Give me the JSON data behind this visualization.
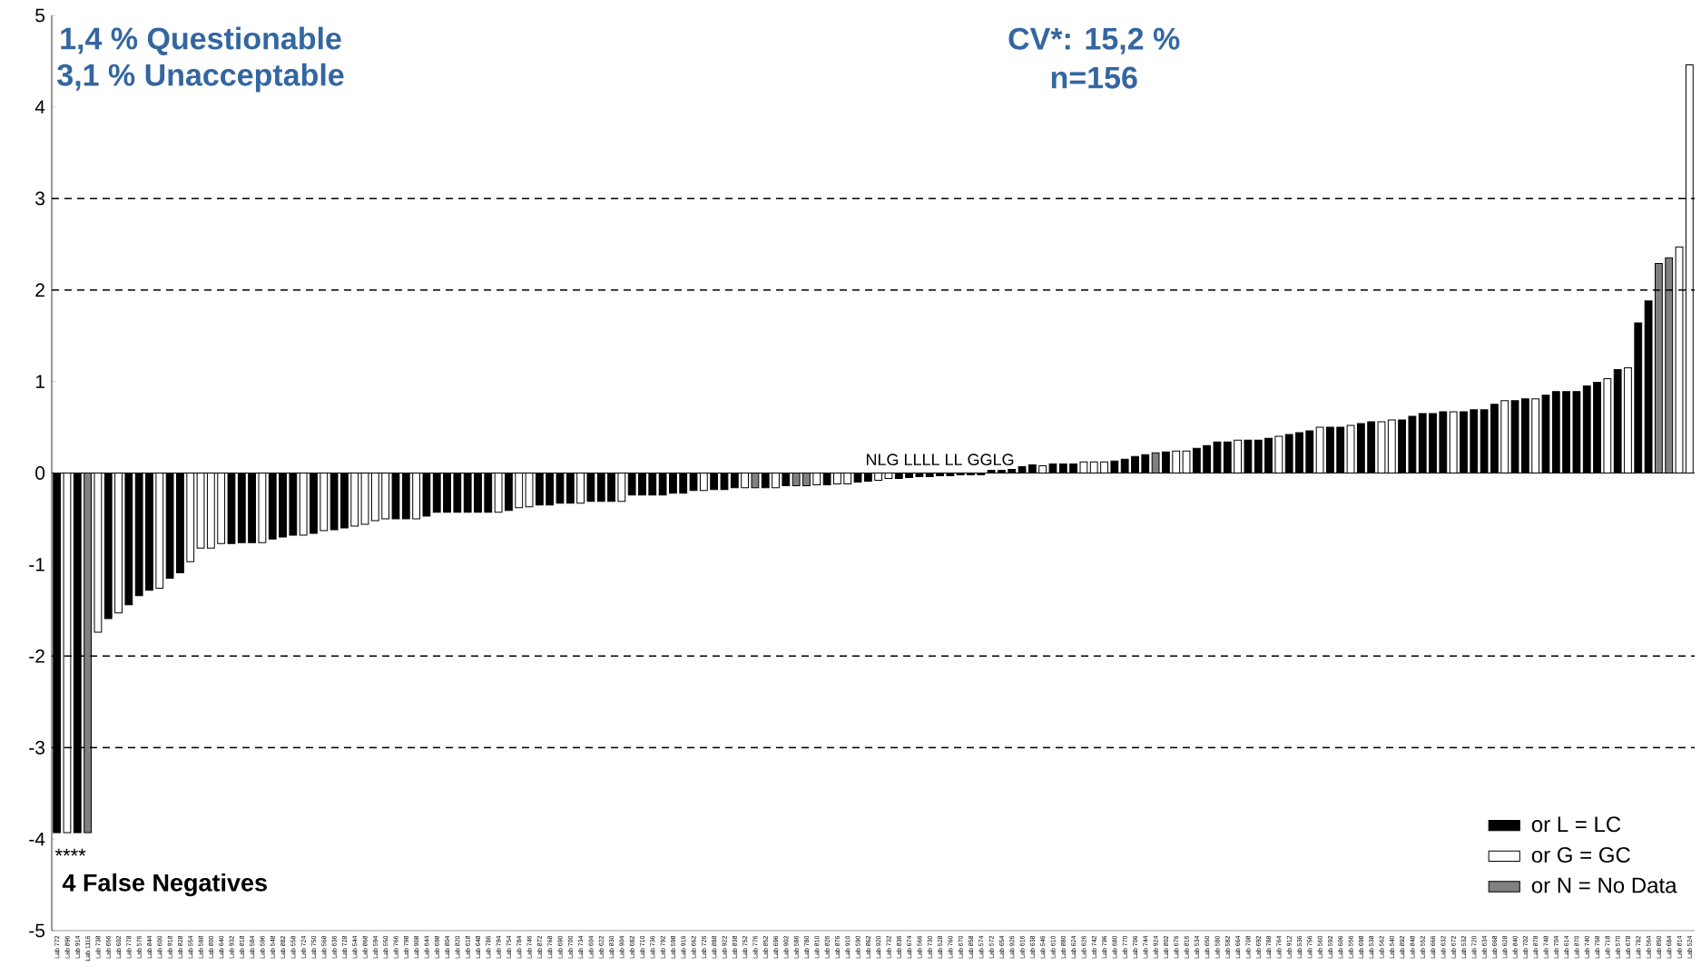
{
  "chart_data": {
    "type": "bar",
    "categories": [
      "Lab 772",
      "Lab 896",
      "Lab 914",
      "Lab 1116",
      "Lab 738",
      "Lab 656",
      "Lab 602",
      "Lab 778",
      "Lab 576",
      "Lab 844",
      "Lab 600",
      "Lab 918",
      "Lab 828",
      "Lab 554",
      "Lab 588",
      "Lab 800",
      "Lab 640",
      "Lab 932",
      "Lab 818",
      "Lab 584",
      "Lab 596",
      "Lab 548",
      "Lab 882",
      "Lab 558",
      "Lab 724",
      "Lab 750",
      "Lab 568",
      "Lab 636",
      "Lab 728",
      "Lab 544",
      "Lab 868",
      "Lab 594",
      "Lab 550",
      "Lab 766",
      "Lab 798",
      "Lab 908",
      "Lab 644",
      "Lab 698",
      "Lab 804",
      "Lab 820",
      "Lab 618",
      "Lab 648",
      "Lab 786",
      "Lab 794",
      "Lab 754",
      "Lab 784",
      "Lab 746",
      "Lab 872",
      "Lab 768",
      "Lab 690",
      "Lab 700",
      "Lab 734",
      "Lab 604",
      "Lab 622",
      "Lab 830",
      "Lab 904",
      "Lab 682",
      "Lab 710",
      "Lab 736",
      "Lab 792",
      "Lab 598",
      "Lab 916",
      "Lab 662",
      "Lab 726",
      "Lab 888",
      "Lab 922",
      "Lab 838",
      "Lab 752",
      "Lab 776",
      "Lab 852",
      "Lab 696",
      "Lab 902",
      "Lab 586",
      "Lab 780",
      "Lab 810",
      "Lab 826",
      "Lab 876",
      "Lab 910",
      "Lab 590",
      "Lab 862",
      "Lab 920",
      "Lab 732",
      "Lab 836",
      "Lab 674",
      "Lab 566",
      "Lab 730",
      "Lab 528",
      "Lab 760",
      "Lab 670",
      "Lab 858",
      "Lab 574",
      "Lab 572",
      "Lab 654",
      "Lab 926",
      "Lab 616",
      "Lab 638",
      "Lab 546",
      "Lab 610",
      "Lab 880",
      "Lab 624",
      "Lab 626",
      "Lab 742",
      "Lab 796",
      "Lab 680",
      "Lab 770",
      "Lab 706",
      "Lab 744",
      "Lab 924",
      "Lab 802",
      "Lab 676",
      "Lab 816",
      "Lab 534",
      "Lab 650",
      "Lab 580",
      "Lab 582",
      "Lab 664",
      "Lab 708",
      "Lab 692",
      "Lab 788",
      "Lab 764",
      "Lab 912",
      "Lab 536",
      "Lab 756",
      "Lab 560",
      "Lab 592",
      "Lab 606",
      "Lab 556",
      "Lab 698",
      "Lab 538",
      "Lab 562",
      "Lab 540",
      "Lab 892",
      "Lab 848",
      "Lab 552",
      "Lab 666",
      "Lab 632",
      "Lab 672",
      "Lab 532",
      "Lab 720",
      "Lab 634",
      "Lab 668",
      "Lab 628",
      "Lab 840",
      "Lab 702",
      "Lab 878",
      "Lab 748",
      "Lab 704",
      "Lab 614",
      "Lab 870",
      "Lab 740",
      "Lab 758",
      "Lab 718",
      "Lab 570",
      "Lab 678",
      "Lab 782",
      "Lab 564",
      "Lab 850",
      "Lab 684",
      "Lab 814",
      "Lab 524"
    ],
    "series": [
      {
        "name": "or L = LC",
        "color": "#000000",
        "values": [
          -3.93,
          null,
          -3.93,
          null,
          null,
          -1.59,
          null,
          -1.44,
          -1.34,
          -1.28,
          null,
          -1.15,
          -1.09,
          null,
          null,
          null,
          null,
          -0.77,
          -0.76,
          -0.76,
          null,
          -0.72,
          -0.7,
          -0.68,
          null,
          -0.66,
          null,
          -0.62,
          -0.6,
          null,
          null,
          null,
          null,
          -0.5,
          -0.5,
          null,
          -0.47,
          -0.43,
          -0.43,
          -0.43,
          -0.43,
          -0.43,
          -0.43,
          null,
          -0.41,
          null,
          null,
          -0.35,
          -0.35,
          -0.33,
          -0.33,
          null,
          -0.31,
          -0.31,
          -0.31,
          null,
          -0.24,
          -0.24,
          -0.24,
          -0.24,
          -0.22,
          -0.22,
          -0.19,
          null,
          -0.18,
          -0.18,
          -0.16,
          null,
          null,
          -0.16,
          null,
          -0.14,
          null,
          null,
          null,
          -0.13,
          null,
          null,
          -0.1,
          -0.09,
          null,
          null,
          -0.06,
          -0.05,
          -0.04,
          -0.04,
          -0.03,
          -0.03,
          -0.02,
          -0.02,
          -0.02,
          0.03,
          0.03,
          0.04,
          0.07,
          0.09,
          null,
          0.1,
          0.1,
          0.1,
          null,
          null,
          null,
          0.13,
          0.15,
          0.18,
          0.2,
          null,
          0.23,
          null,
          null,
          0.27,
          0.3,
          0.34,
          0.34,
          null,
          0.36,
          0.36,
          0.38,
          null,
          0.42,
          0.44,
          0.46,
          null,
          0.5,
          0.5,
          null,
          0.54,
          0.56,
          null,
          null,
          0.58,
          0.62,
          0.65,
          0.65,
          0.67,
          null,
          0.67,
          0.69,
          0.69,
          0.75,
          null,
          0.79,
          0.81,
          null,
          0.85,
          0.89,
          0.89,
          0.89,
          0.95,
          0.99,
          null,
          1.13,
          null,
          1.64,
          1.88,
          null,
          null,
          null,
          null
        ]
      },
      {
        "name": "or G = GC",
        "color": "#ffffff",
        "values": [
          null,
          -3.93,
          null,
          null,
          -1.74,
          null,
          -1.53,
          null,
          null,
          null,
          -1.26,
          null,
          null,
          -0.97,
          -0.82,
          -0.82,
          -0.77,
          null,
          null,
          null,
          -0.76,
          null,
          null,
          null,
          -0.68,
          null,
          -0.63,
          null,
          null,
          -0.58,
          -0.56,
          -0.52,
          -0.5,
          null,
          null,
          -0.5,
          null,
          null,
          null,
          null,
          null,
          null,
          null,
          -0.43,
          null,
          -0.38,
          -0.37,
          null,
          null,
          null,
          null,
          -0.33,
          null,
          null,
          null,
          -0.31,
          null,
          null,
          null,
          null,
          null,
          null,
          null,
          -0.19,
          null,
          null,
          null,
          -0.16,
          null,
          null,
          -0.16,
          null,
          null,
          null,
          -0.13,
          null,
          -0.12,
          -0.12,
          null,
          null,
          -0.08,
          -0.06,
          null,
          null,
          null,
          null,
          null,
          null,
          null,
          null,
          null,
          null,
          null,
          null,
          null,
          null,
          0.08,
          null,
          null,
          null,
          0.12,
          0.12,
          0.12,
          null,
          null,
          null,
          null,
          null,
          null,
          0.24,
          0.24,
          null,
          null,
          null,
          null,
          0.36,
          null,
          null,
          null,
          0.4,
          null,
          null,
          null,
          0.5,
          null,
          null,
          0.52,
          null,
          null,
          0.56,
          0.58,
          null,
          null,
          null,
          null,
          null,
          0.67,
          null,
          null,
          null,
          null,
          0.79,
          null,
          null,
          0.81,
          null,
          null,
          null,
          null,
          null,
          null,
          1.03,
          null,
          1.15,
          null,
          null,
          null,
          null,
          2.47,
          4.46
        ]
      },
      {
        "name": "or N = No Data",
        "color": "#808080",
        "values": [
          null,
          null,
          null,
          -3.93,
          null,
          null,
          null,
          null,
          null,
          null,
          null,
          null,
          null,
          null,
          null,
          null,
          null,
          null,
          null,
          null,
          null,
          null,
          null,
          null,
          null,
          null,
          null,
          null,
          null,
          null,
          null,
          null,
          null,
          null,
          null,
          null,
          null,
          null,
          null,
          null,
          null,
          null,
          null,
          null,
          null,
          null,
          null,
          null,
          null,
          null,
          null,
          null,
          null,
          null,
          null,
          null,
          null,
          null,
          null,
          null,
          null,
          null,
          null,
          null,
          null,
          null,
          null,
          null,
          -0.16,
          null,
          null,
          null,
          -0.14,
          -0.14,
          null,
          null,
          null,
          null,
          null,
          null,
          null,
          null,
          null,
          null,
          null,
          null,
          null,
          null,
          null,
          null,
          null,
          null,
          null,
          null,
          null,
          null,
          null,
          null,
          null,
          null,
          null,
          null,
          null,
          null,
          null,
          null,
          null,
          0.22,
          null,
          null,
          null,
          null,
          null,
          null,
          null,
          null,
          null,
          null,
          null,
          null,
          null,
          null,
          null,
          null,
          null,
          null,
          null,
          null,
          null,
          null,
          null,
          null,
          null,
          null,
          null,
          null,
          null,
          null,
          null,
          null,
          null,
          null,
          null,
          null,
          null,
          null,
          null,
          null,
          null,
          null,
          null,
          null,
          null,
          null,
          null,
          null,
          2.29,
          2.35,
          null,
          null
        ]
      }
    ],
    "ylim": [
      -5,
      5
    ],
    "yticks": [
      -5,
      -4,
      -3,
      -2,
      -1,
      0,
      1,
      2,
      3,
      4,
      5
    ],
    "ref_lines": [
      {
        "axis": "y",
        "value": 3,
        "color": "#000000",
        "line_style": "dashed"
      },
      {
        "axis": "y",
        "value": 2,
        "color": "#000000",
        "line_style": "dashed"
      },
      {
        "axis": "y",
        "value": -2,
        "color": "#000000",
        "line_style": "dashed"
      },
      {
        "axis": "y",
        "value": -3,
        "color": "#000000",
        "line_style": "dashed"
      }
    ],
    "annotations": [
      "1,4 % Questionable",
      "3,1 % Unacceptable",
      "CV*: 15,2 %",
      "n=156",
      "****",
      "4 False Negatives",
      "NLG LLLL LL GGLG"
    ],
    "legend": "bottom right"
  }
}
